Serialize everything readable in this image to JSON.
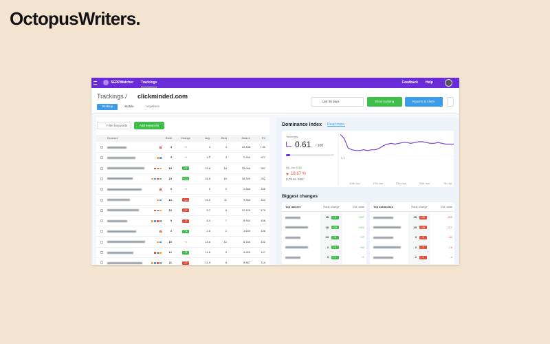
{
  "brand": {
    "logo": "OctopusWriters."
  },
  "nav": {
    "app": "SERPWatcher",
    "tab": "Trackings",
    "links": [
      "Feedback",
      "Help"
    ]
  },
  "header": {
    "breadcrumb": "Trackings /",
    "domain": "clickminded.com",
    "device_tabs": [
      "Desktop",
      "Mobile"
    ],
    "location": "Anywhere",
    "date_range": "Last 30 days",
    "buttons": [
      "Show tracking",
      "Reports & Alerts"
    ]
  },
  "keywords": {
    "filter_placeholder": "Filter keywords",
    "add_button": "Add keywords",
    "columns": [
      "Keyword",
      "Rank",
      "Change",
      "Avg.",
      "Best",
      "Search",
      "EV"
    ],
    "rows": [
      [
        4,
        "+0",
        4,
        4,
        "22,428",
        "1.4k"
      ],
      [
        3,
        "+0",
        3.2,
        3,
        "2,440",
        977
      ],
      [
        18,
        "+1",
        19.8,
        18,
        "22,096",
        357
      ],
      [
        19,
        "+11",
        24.8,
        16,
        "18,159",
        252
      ],
      [
        5,
        "+0",
        5,
        5,
        "2,905",
        186
      ],
      [
        13,
        "-1",
        15.5,
        11,
        "9,900",
        164
      ],
      [
        10,
        "-2",
        9.7,
        8,
        "12,100",
        179
      ],
      [
        9,
        "-2",
        8.4,
        7,
        "9,900",
        156
      ],
      [
        3,
        "+1",
        2.5,
        2,
        "1,600",
        136
      ],
      [
        15,
        "+0",
        13.8,
        12,
        "8,150",
        132
      ],
      [
        12,
        "+3",
        11.6,
        9,
        "9,900",
        147
      ],
      [
        11,
        "-2",
        11.9,
        8,
        "8,967",
        110
      ]
    ]
  },
  "dominance": {
    "title": "Dominance Index",
    "link": "Read more.",
    "period": "Yesterday",
    "value": 0.61,
    "max": "/ 100",
    "date": "8th Jun 2019",
    "change": "18.67 %",
    "compare": "0.75 vs. 0.61",
    "chart": {
      "type": "line",
      "color": "#7b3fd8",
      "values": [
        0.67,
        0.62,
        0.5,
        0.48,
        0.47,
        0.47,
        0.48,
        0.47,
        0.48,
        0.48,
        0.5,
        0.53,
        0.55,
        0.56,
        0.55,
        0.56,
        0.57,
        0.57,
        0.56,
        0.57,
        0.58,
        0.58,
        0.57,
        0.56,
        0.56,
        0.57,
        0.56,
        0.55,
        0.55,
        0.55
      ],
      "ylim": [
        0.1,
        0.7
      ],
      "yticks": [
        0.4
      ],
      "x_labels": [
        "10th Jun",
        "17th Jun",
        "23rd Jun",
        "30th Jun",
        "7th Jul"
      ]
    }
  },
  "biggest_changes": {
    "title": "Biggest changes",
    "tables": [
      {
        "columns": [
          "Top rankers",
          "Rank change",
          "Est. visits"
        ],
        "rows": [
          [
            18,
            "+5",
            "+597"
          ],
          [
            18,
            "+18",
            "+252"
          ],
          [
            23,
            "+8",
            "+97"
          ],
          [
            3,
            "+2",
            "+92"
          ],
          [
            3,
            "+1",
            "+1"
          ]
        ]
      },
      {
        "columns": [
          "Top outrankers",
          "Rank change",
          "Est. visits"
        ],
        "rows": [
          [
            23,
            "-20",
            "-993"
          ],
          [
            29,
            "-28",
            "-217"
          ],
          [
            3,
            "-3",
            "-84"
          ],
          [
            3,
            "-2",
            "-16"
          ],
          [
            2,
            "-1",
            "-4"
          ]
        ]
      }
    ]
  }
}
